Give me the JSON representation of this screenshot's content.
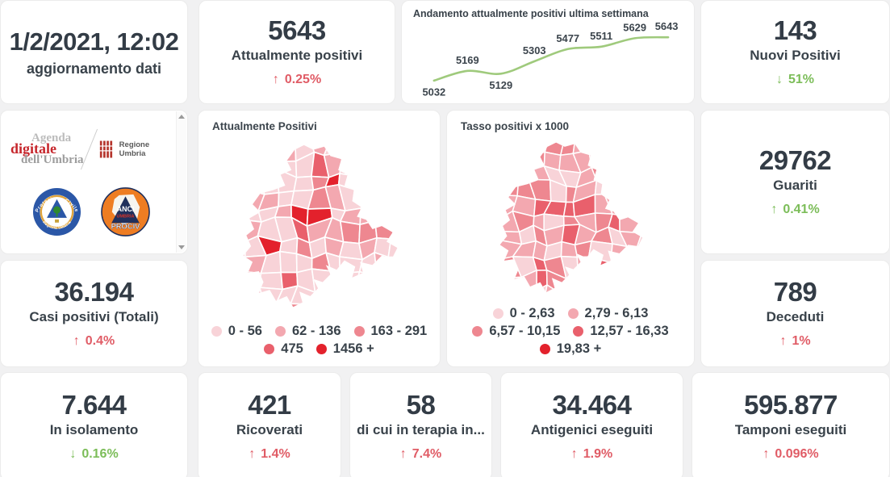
{
  "colors": {
    "red": "#e05c66",
    "green": "#7cbd59",
    "dark_text": "#333c46",
    "line_green": "#9fca7c",
    "map_palette": [
      "#f8d3d8",
      "#f3a8b0",
      "#ee8790",
      "#e9606c",
      "#e3212c"
    ]
  },
  "update": {
    "value": "1/2/2021, 12:02",
    "label": "aggiornamento dati"
  },
  "cards": {
    "attualmente_positivi": {
      "value": "5643",
      "label": "Attualmente positivi",
      "arrow": "↑",
      "delta": "0.25%",
      "delta_color": "#e05c66"
    },
    "nuovi_positivi": {
      "value": "143",
      "label": "Nuovi Positivi",
      "arrow": "↓",
      "delta": "51%",
      "delta_color": "#7cbd59"
    },
    "guariti": {
      "value": "29762",
      "label": "Guariti",
      "arrow": "↑",
      "delta": "0.41%",
      "delta_color": "#7cbd59"
    },
    "casi_totali": {
      "value": "36.194",
      "label": "Casi positivi (Totali)",
      "arrow": "↑",
      "delta": "0.4%",
      "delta_color": "#e05c66"
    },
    "deceduti": {
      "value": "789",
      "label": "Deceduti",
      "arrow": "↑",
      "delta": "1%",
      "delta_color": "#e05c66"
    },
    "isolamento": {
      "value": "7.644",
      "label": "In isolamento",
      "arrow": "↓",
      "delta": "0.16%",
      "delta_color": "#7cbd59"
    },
    "ricoverati": {
      "value": "421",
      "label": "Ricoverati",
      "arrow": "↑",
      "delta": "1.4%",
      "delta_color": "#e05c66"
    },
    "terapia": {
      "value": "58",
      "label": "di cui in terapia in...",
      "arrow": "↑",
      "delta": "7.4%",
      "delta_color": "#e05c66"
    },
    "antigenici": {
      "value": "34.464",
      "label": "Antigenici eseguiti",
      "arrow": "↑",
      "delta": "1.9%",
      "delta_color": "#e05c66"
    },
    "tamponi": {
      "value": "595.877",
      "label": "Tamponi eseguiti",
      "arrow": "↑",
      "delta": "0.096%",
      "delta_color": "#e05c66"
    }
  },
  "chart_data": {
    "type": "line",
    "title": "Andamento attualmente positivi ultima settimana",
    "values": [
      5032,
      5169,
      5129,
      5303,
      5477,
      5511,
      5629,
      5643
    ],
    "value_labels_visible": true,
    "line_color": "#9fca7c",
    "label_color": "#3b444c",
    "axes_visible": false,
    "grid": false
  },
  "maps": [
    {
      "type": "choropleth",
      "title": "Attualmente Positivi",
      "legend_rows": [
        [
          {
            "label": "0 - 56",
            "color": "#f8d3d8"
          },
          {
            "label": "62 - 136",
            "color": "#f3a8b0"
          },
          {
            "label": "163 - 291",
            "color": "#ee8790"
          }
        ],
        [
          {
            "label": "475",
            "color": "#e9606c"
          },
          {
            "label": "1456 +",
            "color": "#e3212c"
          }
        ]
      ]
    },
    {
      "type": "choropleth",
      "title": "Tasso positivi x 1000",
      "legend_rows": [
        [
          {
            "label": "0 - 2,63",
            "color": "#f8d3d8"
          },
          {
            "label": "2,79 - 6,13",
            "color": "#f3a8b0"
          }
        ],
        [
          {
            "label": "6,57 - 10,15",
            "color": "#ee8790"
          },
          {
            "label": "12,57 - 16,33",
            "color": "#e9606c"
          }
        ],
        [
          {
            "label": "19,83 +",
            "color": "#e3212c"
          }
        ]
      ]
    }
  ],
  "logos": {
    "agenda": {
      "line1": "Agenda",
      "line2": "digitale",
      "line3": "dell'Umbria"
    },
    "regione": {
      "label": "Regione Umbria"
    },
    "protezione_civile": {
      "ring_top": "Protezione Civile",
      "ring_bottom": "Regione Umbria"
    },
    "anci": {
      "line1": "ANCI",
      "line2": "UMBRIA",
      "line3": "PROCIV"
    }
  }
}
